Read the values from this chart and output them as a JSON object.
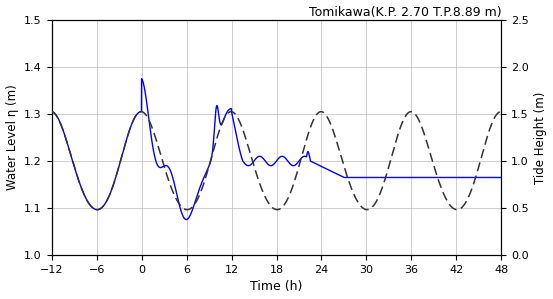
{
  "title": "Tomikawa(K.P. 2.70 T.P.8.89 m)",
  "xlabel": "Time (h)",
  "ylabel_left": "Water Level η (m)",
  "ylabel_right": "Tide Height (m)",
  "xlim": [
    -12,
    48
  ],
  "xticks": [
    -12,
    -6,
    0,
    6,
    12,
    18,
    24,
    30,
    36,
    42,
    48
  ],
  "ylim_left": [
    1.0,
    1.5
  ],
  "ylim_right": [
    0.0,
    2.5
  ],
  "yticks_left": [
    1.0,
    1.1,
    1.2,
    1.3,
    1.4,
    1.5
  ],
  "yticks_right": [
    0.0,
    0.5,
    1.0,
    1.5,
    2.0,
    2.5
  ],
  "water_color": "#0000ff",
  "tide_color": "#333333",
  "background_color": "#ffffff",
  "grid_color": "#bbbbbb"
}
